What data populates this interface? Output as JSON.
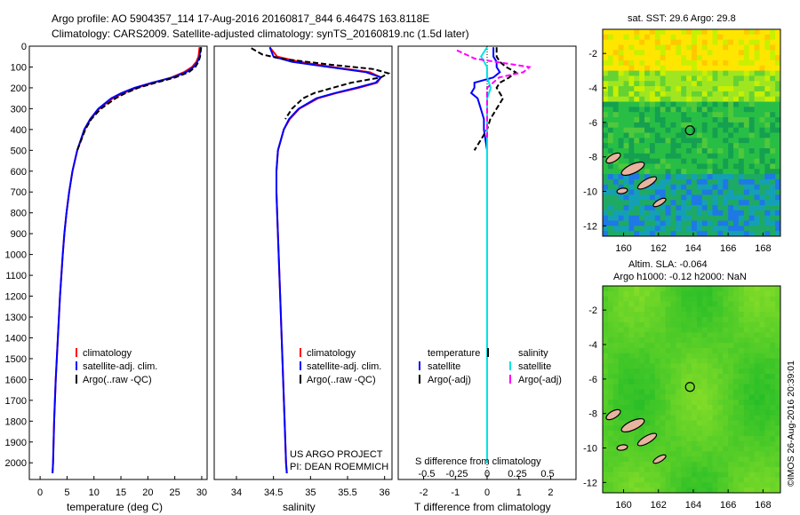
{
  "header": {
    "line1": "Argo profile: AO 5904357_114 17-Aug-2016 20160817_844 6.4647S 163.8118E",
    "line2": "Climatology: CARS2009. Satellite-adjusted climatology: synTS_20160819.nc (1.5d later)"
  },
  "colors": {
    "climatology": "#ff0000",
    "satellite": "#0000ff",
    "argo": "#000000",
    "sat_salinity": "#00e5e5",
    "argo_salinity": "#ff00ff",
    "land": "#e8b4a0"
  },
  "depth_ticks": [
    "0",
    "100",
    "200",
    "300",
    "400",
    "500",
    "600",
    "700",
    "800",
    "900",
    "1000",
    "1100",
    "1200",
    "1300",
    "1400",
    "1500",
    "1600",
    "1700",
    "1800",
    "1900",
    "2000"
  ],
  "chart_data": [
    {
      "type": "line",
      "name": "temperature",
      "xlabel": "temperature (deg C)",
      "xticks": [
        "0",
        "5",
        "10",
        "15",
        "20",
        "25",
        "30"
      ],
      "xlim": [
        -2,
        31
      ],
      "ylim": [
        2080,
        0
      ],
      "legend": [
        "climatology",
        "satellite-adj. clim.",
        "Argo(..raw -QC)"
      ],
      "series": [
        {
          "name": "climatology",
          "color": "#ff0000",
          "depth": [
            5,
            50,
            75,
            100,
            125,
            150,
            175,
            200,
            225,
            250,
            300,
            350,
            400,
            500,
            600,
            700,
            800,
            900,
            1000,
            1200,
            1400,
            1600,
            1800,
            2000,
            2050
          ],
          "values": [
            29.6,
            29.4,
            29.0,
            28.2,
            26.7,
            24.4,
            21.1,
            17.9,
            15.5,
            13.5,
            11.0,
            9.4,
            8.3,
            6.9,
            6.0,
            5.4,
            4.9,
            4.5,
            4.2,
            3.7,
            3.3,
            2.9,
            2.6,
            2.4,
            2.3
          ]
        },
        {
          "name": "satellite-adj. clim.",
          "color": "#0000ff",
          "depth": [
            5,
            50,
            75,
            100,
            125,
            150,
            175,
            200,
            225,
            250,
            300,
            350,
            400,
            500,
            600,
            700,
            800,
            900,
            1000,
            1200,
            1400,
            1600,
            1800,
            2000,
            2050
          ],
          "values": [
            29.8,
            29.6,
            29.2,
            28.5,
            27.1,
            24.6,
            20.8,
            17.5,
            15.1,
            13.2,
            10.8,
            9.3,
            8.2,
            6.9,
            6.0,
            5.4,
            4.9,
            4.5,
            4.2,
            3.7,
            3.3,
            2.9,
            2.6,
            2.4,
            2.3
          ]
        },
        {
          "name": "Argo(..raw -QC)",
          "color": "#000000",
          "dash": true,
          "depth": [
            5,
            50,
            75,
            100,
            125,
            150,
            175,
            200,
            225,
            250,
            300,
            350,
            400,
            500
          ],
          "values": [
            29.9,
            29.7,
            29.4,
            28.8,
            27.6,
            25.1,
            21.5,
            18.2,
            15.9,
            14.0,
            11.3,
            9.5,
            8.4,
            6.9
          ]
        }
      ]
    },
    {
      "type": "line",
      "name": "salinity",
      "xlabel": "salinity",
      "xticks": [
        "34",
        "34.5",
        "35",
        "35.5",
        "36"
      ],
      "xlim": [
        33.7,
        36.1
      ],
      "ylim": [
        2080,
        0
      ],
      "legend": [
        "climatology",
        "satellite-adj. clim.",
        "Argo(..raw -QC)"
      ],
      "annotation": [
        "US ARGO PROJECT",
        "PI: DEAN ROEMMICH"
      ],
      "series": [
        {
          "name": "climatology",
          "color": "#ff0000",
          "depth": [
            5,
            50,
            75,
            100,
            125,
            150,
            175,
            200,
            225,
            250,
            300,
            350,
            400,
            500,
            600,
            700,
            800,
            1000,
            1200,
            1500,
            1800,
            2000,
            2050
          ],
          "values": [
            34.45,
            34.55,
            34.85,
            35.3,
            35.8,
            35.95,
            35.9,
            35.65,
            35.35,
            35.1,
            34.85,
            34.72,
            34.64,
            34.56,
            34.54,
            34.54,
            34.55,
            34.57,
            34.59,
            34.62,
            34.65,
            34.67,
            34.68
          ]
        },
        {
          "name": "satellite-adj. clim.",
          "color": "#0000ff",
          "depth": [
            5,
            50,
            75,
            100,
            125,
            150,
            175,
            200,
            225,
            250,
            300,
            350,
            400,
            500,
            600,
            700,
            800,
            1000,
            1200,
            1500,
            1800,
            2000,
            2050
          ],
          "values": [
            34.45,
            34.5,
            34.75,
            35.25,
            35.75,
            35.95,
            35.88,
            35.62,
            35.33,
            35.08,
            34.84,
            34.71,
            34.64,
            34.56,
            34.54,
            34.54,
            34.55,
            34.57,
            34.59,
            34.62,
            34.65,
            34.67,
            34.68
          ]
        },
        {
          "name": "Argo(..raw -QC)",
          "color": "#000000",
          "dash": true,
          "depth": [
            10,
            40,
            60,
            90,
            110,
            130,
            150,
            175,
            200,
            225,
            250,
            300,
            350
          ],
          "values": [
            34.2,
            34.35,
            34.6,
            35.3,
            35.85,
            36.05,
            35.95,
            35.55,
            35.3,
            35.05,
            34.9,
            34.75,
            34.66
          ]
        }
      ]
    },
    {
      "type": "line",
      "name": "difference",
      "xlabel": "T difference from climatology",
      "top_label": "S difference from climatology",
      "xticks": [
        "-2",
        "-1",
        "0",
        "1",
        "2"
      ],
      "xlim": [
        -2.8,
        2.8
      ],
      "sticks": [
        "-0.5",
        "-0.25",
        "0",
        "0.25",
        "0.5"
      ],
      "ylim": [
        2080,
        0
      ],
      "legend": {
        "temperature": [
          "temperature",
          "satellite",
          "Argo(-adj)"
        ],
        "salinity": [
          "salinity",
          "satellite",
          "Argo(-adj)"
        ]
      },
      "series": [
        {
          "name": "satellite",
          "color": "#0000ff",
          "depth": [
            5,
            50,
            75,
            100,
            125,
            150,
            175,
            200,
            225,
            250,
            300,
            350,
            400,
            500,
            700,
            1000,
            1500,
            2000
          ],
          "values": [
            0.2,
            0.2,
            0.3,
            0.3,
            0.4,
            0.2,
            -0.4,
            -0.4,
            -0.5,
            -0.3,
            -0.2,
            -0.1,
            -0.1,
            0.0,
            0.0,
            0.0,
            0.0,
            0.0
          ]
        },
        {
          "name": "Argo(-adj)",
          "color": "#000000",
          "dash": true,
          "depth": [
            5,
            50,
            75,
            100,
            125,
            150,
            175,
            200,
            225,
            250,
            300,
            350,
            400,
            450,
            500
          ],
          "values": [
            0.3,
            0.3,
            0.4,
            0.6,
            0.9,
            0.7,
            0.4,
            0.3,
            0.4,
            0.5,
            0.3,
            0.1,
            0.0,
            -0.2,
            -0.4
          ]
        },
        {
          "name": "salinity satellite",
          "color": "#00e5e5",
          "depth": [
            5,
            50,
            100,
            150,
            200,
            250,
            300,
            400,
            500,
            700,
            1000,
            1500,
            2000
          ],
          "values": [
            0.0,
            -0.05,
            0.0,
            0.0,
            0.03,
            0.0,
            0.0,
            0.0,
            0.0,
            0.0,
            0.0,
            0.0,
            0.0
          ]
        },
        {
          "name": "salinity Argo(-adj)",
          "color": "#ff00ff",
          "dash": true,
          "depth": [
            20,
            60,
            100,
            125,
            150,
            200,
            250,
            300,
            350,
            400,
            450
          ],
          "values": [
            -0.25,
            -0.1,
            0.35,
            0.3,
            0.1,
            0.0,
            0.0,
            0.0,
            0.0,
            0.0,
            0.0
          ]
        }
      ]
    },
    {
      "type": "heatmap",
      "name": "sst map",
      "title": "sat. SST: 29.6 Argo: 29.8",
      "xticks": [
        "160",
        "162",
        "164",
        "166",
        "168"
      ],
      "yticks": [
        "-2",
        "-4",
        "-6",
        "-8",
        "-10",
        "-12"
      ],
      "xlim": [
        158.8,
        169.0
      ],
      "ylim": [
        -12.6,
        -0.6
      ],
      "marker": [
        163.81,
        -6.46
      ]
    },
    {
      "type": "heatmap",
      "name": "sla map",
      "title_line1": "Altim. SLA: -0.064",
      "title_line2": "Argo h1000: -0.12 h2000: NaN",
      "xticks": [
        "160",
        "162",
        "164",
        "166",
        "168"
      ],
      "yticks": [
        "-2",
        "-4",
        "-6",
        "-8",
        "-10",
        "-12"
      ],
      "xlim": [
        158.8,
        169.0
      ],
      "ylim": [
        -12.6,
        -0.6
      ],
      "marker": [
        163.81,
        -6.46
      ]
    }
  ],
  "footer": {
    "timestamp": "©IMOS 26-Aug-2016 20:39:01"
  }
}
